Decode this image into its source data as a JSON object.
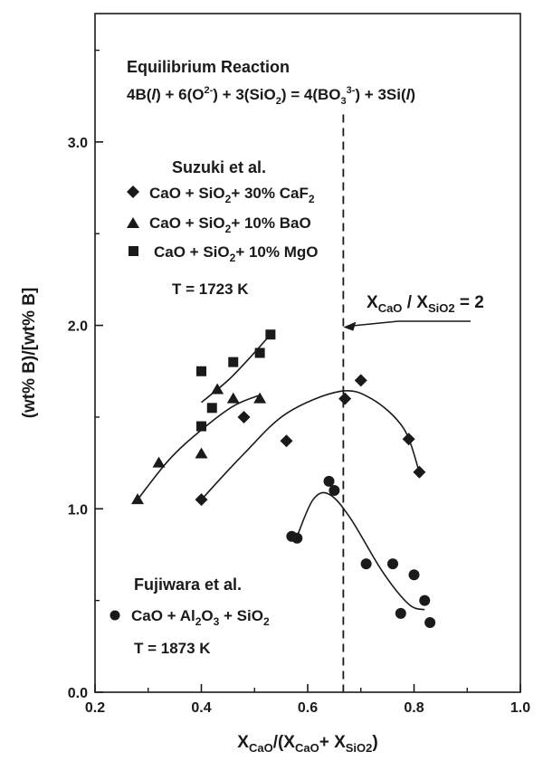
{
  "chart_data": {
    "type": "scatter",
    "xlabel": "X_CaO/(X_CaO+ X_SiO2)",
    "ylabel": "(wt% B)/[wt% B]",
    "xlim": [
      0.2,
      1.0
    ],
    "ylim": [
      0.0,
      3.7
    ],
    "x_ticks": [
      "0.2",
      "0.4",
      "0.6",
      "0.8",
      "1.0"
    ],
    "y_ticks": [
      "0.0",
      "1.0",
      "2.0",
      "3.0"
    ],
    "grid": false,
    "reaction": {
      "title": "Equilibrium Reaction",
      "equation": "4B(l) + 6(O2-) + 3(SiO2) = 4(BO3 3-) + 3Si(l)"
    },
    "reference_line": {
      "x": 0.667,
      "label": "X_CaO / X_SiO2 = 2",
      "arrow_to_y": 2.0
    },
    "groups": [
      {
        "author": "Suzuki et al.",
        "temperature": "T = 1723 K",
        "series": [
          {
            "name": "CaO + SiO2+ 30% CaF2",
            "marker": "diamond",
            "points": [
              [
                0.4,
                1.05
              ],
              [
                0.48,
                1.5
              ],
              [
                0.56,
                1.37
              ],
              [
                0.67,
                1.6
              ],
              [
                0.7,
                1.7
              ],
              [
                0.79,
                1.38
              ],
              [
                0.81,
                1.2
              ]
            ],
            "fit": [
              [
                0.4,
                1.05
              ],
              [
                0.48,
                1.3
              ],
              [
                0.56,
                1.52
              ],
              [
                0.66,
                1.64
              ],
              [
                0.72,
                1.6
              ],
              [
                0.78,
                1.44
              ],
              [
                0.81,
                1.2
              ]
            ]
          },
          {
            "name": "CaO + SiO2+ 10% BaO",
            "marker": "triangle",
            "points": [
              [
                0.28,
                1.05
              ],
              [
                0.32,
                1.25
              ],
              [
                0.4,
                1.3
              ],
              [
                0.43,
                1.65
              ],
              [
                0.46,
                1.6
              ],
              [
                0.51,
                1.6
              ]
            ],
            "fit": [
              [
                0.28,
                1.05
              ],
              [
                0.34,
                1.27
              ],
              [
                0.4,
                1.43
              ],
              [
                0.46,
                1.56
              ],
              [
                0.51,
                1.62
              ]
            ]
          },
          {
            "name": "CaO + SiO2+ 10% MgO",
            "marker": "square",
            "points": [
              [
                0.4,
                1.45
              ],
              [
                0.4,
                1.75
              ],
              [
                0.42,
                1.55
              ],
              [
                0.46,
                1.8
              ],
              [
                0.51,
                1.85
              ],
              [
                0.53,
                1.95
              ]
            ],
            "fit": [
              [
                0.4,
                1.58
              ],
              [
                0.45,
                1.7
              ],
              [
                0.49,
                1.82
              ],
              [
                0.53,
                1.95
              ]
            ]
          }
        ]
      },
      {
        "author": "Fujiwara et al.",
        "temperature": "T = 1873 K",
        "series": [
          {
            "name": "CaO + Al2O3 + SiO2",
            "marker": "circle",
            "points": [
              [
                0.57,
                0.85
              ],
              [
                0.58,
                0.84
              ],
              [
                0.64,
                1.15
              ],
              [
                0.65,
                1.1
              ],
              [
                0.71,
                0.7
              ],
              [
                0.76,
                0.7
              ],
              [
                0.775,
                0.43
              ],
              [
                0.8,
                0.64
              ],
              [
                0.82,
                0.5
              ],
              [
                0.83,
                0.38
              ]
            ],
            "fit": [
              [
                0.58,
                0.85
              ],
              [
                0.61,
                1.05
              ],
              [
                0.64,
                1.08
              ],
              [
                0.68,
                0.95
              ],
              [
                0.74,
                0.66
              ],
              [
                0.79,
                0.48
              ],
              [
                0.82,
                0.45
              ]
            ]
          }
        ]
      }
    ]
  }
}
